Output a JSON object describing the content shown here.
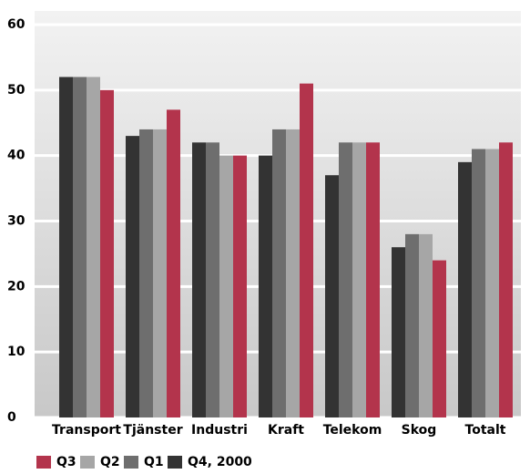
{
  "chart_data": {
    "type": "bar",
    "categories": [
      "Transport",
      "Tjänster",
      "Industri",
      "Kraft",
      "Telekom",
      "Skog",
      "Totalt"
    ],
    "series": [
      {
        "name": "Q4, 2000",
        "color": "#333333",
        "values": [
          52,
          43,
          42,
          40,
          37,
          26,
          39
        ]
      },
      {
        "name": "Q1",
        "color": "#6e6e6e",
        "values": [
          52,
          44,
          42,
          44,
          42,
          28,
          41
        ]
      },
      {
        "name": "Q2",
        "color": "#a6a6a6",
        "values": [
          52,
          44,
          40,
          44,
          42,
          28,
          41
        ]
      },
      {
        "name": "Q3",
        "color": "#b3344c",
        "values": [
          50,
          47,
          40,
          51,
          42,
          24,
          42
        ]
      }
    ],
    "ylim": [
      0,
      60
    ],
    "yticks": [
      0,
      10,
      20,
      30,
      40,
      50,
      60
    ],
    "grid": true
  }
}
